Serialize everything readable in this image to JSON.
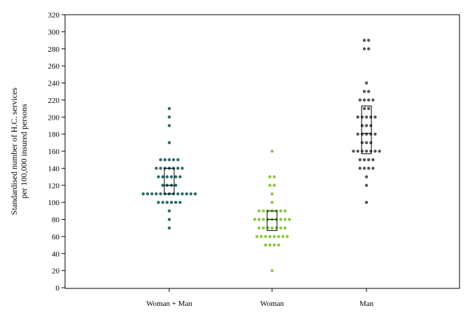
{
  "chart_data": {
    "type": "scatter",
    "subtype": "beeswarm-with-boxes",
    "ylabel": [
      "Standardised number of H.C. services",
      "per 100,000 insured persons"
    ],
    "ylim": [
      0,
      320
    ],
    "yticks": [
      0,
      20,
      40,
      60,
      80,
      100,
      120,
      140,
      160,
      180,
      200,
      220,
      240,
      260,
      280,
      300,
      320
    ],
    "categories": [
      "Woman + Man",
      "Woman",
      "Man"
    ],
    "grid": false,
    "series": [
      {
        "category": "Woman + Man",
        "color": "#2a6b6b",
        "values": [
          70,
          80,
          90,
          100,
          100,
          100,
          100,
          100,
          100,
          110,
          110,
          110,
          110,
          110,
          110,
          110,
          110,
          110,
          110,
          110,
          110,
          110,
          120,
          120,
          120,
          120,
          130,
          130,
          130,
          130,
          130,
          130,
          140,
          140,
          140,
          140,
          140,
          140,
          140,
          150,
          150,
          150,
          150,
          150,
          170,
          190,
          200,
          210
        ],
        "box": {
          "q1": 110,
          "median": 120,
          "q3": 140
        }
      },
      {
        "category": "Woman",
        "color": "#8cc63f",
        "values": [
          20,
          50,
          50,
          50,
          50,
          60,
          60,
          60,
          60,
          60,
          60,
          60,
          60,
          70,
          70,
          70,
          70,
          70,
          70,
          70,
          80,
          80,
          80,
          80,
          80,
          80,
          80,
          80,
          80,
          90,
          90,
          90,
          90,
          90,
          90,
          90,
          100,
          110,
          120,
          120,
          130,
          130,
          160
        ],
        "box": {
          "q1": 67,
          "median": 80,
          "q3": 90
        }
      },
      {
        "category": "Man",
        "color": "#555555",
        "values": [
          100,
          120,
          130,
          140,
          140,
          140,
          140,
          150,
          150,
          150,
          150,
          160,
          160,
          160,
          160,
          160,
          160,
          160,
          170,
          170,
          170,
          180,
          180,
          180,
          180,
          180,
          190,
          190,
          190,
          200,
          200,
          200,
          200,
          200,
          210,
          210,
          220,
          220,
          220,
          220,
          230,
          230,
          240,
          280,
          280,
          290,
          290
        ],
        "box": {
          "q1": 157,
          "median": 181,
          "q3": 213
        }
      }
    ]
  }
}
